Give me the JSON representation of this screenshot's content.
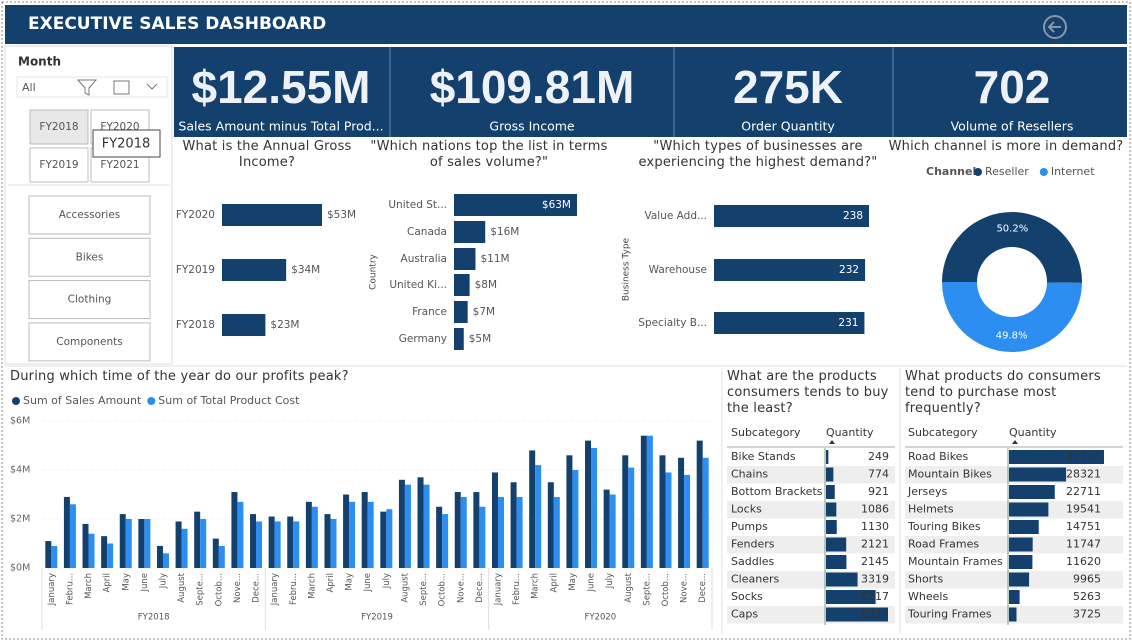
{
  "header": {
    "title": "EXECUTIVE SALES DASHBOARD"
  },
  "slicer": {
    "title": "Month",
    "selection": "All",
    "years": [
      "FY2018",
      "FY2020",
      "FY2019",
      "FY2021"
    ],
    "tooltip": "FY2018",
    "categories": [
      "Accessories",
      "Bikes",
      "Clothing",
      "Components"
    ]
  },
  "kpis": [
    {
      "value": "$12.55M",
      "label": "Sales Amount minus Total Prod..."
    },
    {
      "value": "$109.81M",
      "label": "Gross Income"
    },
    {
      "value": "275K",
      "label": "Order Quantity"
    },
    {
      "value": "702",
      "label": "Volume of Resellers"
    }
  ],
  "chart_data": [
    {
      "type": "hbar",
      "title": "What is the Annual Gross Income?",
      "categories": [
        "FY2020",
        "FY2019",
        "FY2018"
      ],
      "values": [
        53,
        34,
        23
      ],
      "value_labels": [
        "$53M",
        "$34M",
        "$23M"
      ],
      "color": "#13406d"
    },
    {
      "type": "hbar",
      "title": "\"Which nations top the list in terms of sales volume?\"",
      "y_label": "Country",
      "categories": [
        "United St...",
        "Canada",
        "Australia",
        "United Ki...",
        "France",
        "Germany"
      ],
      "values": [
        63,
        16,
        11,
        8,
        7,
        5
      ],
      "value_labels": [
        "$63M",
        "$16M",
        "$11M",
        "$8M",
        "$7M",
        "$5M"
      ],
      "color": "#13406d"
    },
    {
      "type": "hbar",
      "title": "\"Which types of businesses are experiencing the highest demand?\"",
      "y_label": "Business Type",
      "categories": [
        "Value Add...",
        "Warehouse",
        "Specialty B..."
      ],
      "values": [
        238,
        232,
        231
      ],
      "color": "#13406d"
    },
    {
      "type": "donut",
      "title": "Which channel is more in demand?",
      "legend_title": "Channel",
      "categories": [
        "Reseller",
        "Internet"
      ],
      "values": [
        50.2,
        49.8
      ],
      "value_labels": [
        "50.2%",
        "49.8%"
      ],
      "colors": [
        "#13406d",
        "#2b8ef0"
      ]
    },
    {
      "type": "column",
      "title": "During which time of the year do our profits peak?",
      "categories": [
        "January",
        "Febru...",
        "March",
        "April",
        "May",
        "June",
        "July",
        "August",
        "Septe...",
        "Octob...",
        "Nove...",
        "Dece...",
        "January",
        "Febru...",
        "March",
        "April",
        "May",
        "June",
        "July",
        "August",
        "Septe...",
        "Octob...",
        "Nove...",
        "Dece...",
        "January",
        "Febru...",
        "March",
        "April",
        "May",
        "June",
        "July",
        "August",
        "Septe...",
        "Octob...",
        "Nove...",
        "Dece..."
      ],
      "category_groups": [
        "FY2018",
        "FY2019",
        "FY2020"
      ],
      "series": [
        {
          "name": "Sum of Sales Amount",
          "color": "#13406d",
          "values": [
            1.1,
            2.9,
            1.8,
            1.3,
            2.2,
            2.0,
            0.9,
            1.9,
            2.3,
            1.2,
            3.1,
            2.2,
            2.1,
            2.1,
            2.7,
            2.2,
            3.0,
            3.1,
            2.3,
            3.6,
            3.7,
            2.5,
            3.1,
            3.1,
            3.9,
            3.5,
            4.8,
            3.5,
            4.6,
            5.2,
            3.2,
            4.6,
            5.4,
            4.6,
            4.5,
            5.2
          ]
        },
        {
          "name": "Sum of Total Product Cost",
          "color": "#2b8ef0",
          "values": [
            0.9,
            2.6,
            1.4,
            1.0,
            2.0,
            2.0,
            0.6,
            1.6,
            2.0,
            0.9,
            2.7,
            1.9,
            1.9,
            1.9,
            2.5,
            2.0,
            2.7,
            2.7,
            2.4,
            3.4,
            3.4,
            2.2,
            2.9,
            2.5,
            2.9,
            2.9,
            4.2,
            2.9,
            4.0,
            4.9,
            3.0,
            4.1,
            5.4,
            3.9,
            3.8,
            4.5
          ]
        }
      ],
      "ylim": [
        0,
        6
      ],
      "yticks": [
        {
          "value": 0,
          "label": "$0M"
        },
        {
          "value": 2,
          "label": "$2M"
        },
        {
          "value": 4,
          "label": "$4M"
        },
        {
          "value": 6,
          "label": "$6M"
        }
      ],
      "grid": true
    },
    {
      "type": "table-bar",
      "title": "What are the products consumers tends to buy the least?",
      "columns": [
        "Subcategory",
        "Quantity"
      ],
      "categories": [
        "Bike Stands",
        "Chains",
        "Bottom Brackets",
        "Locks",
        "Pumps",
        "Fenders",
        "Saddles",
        "Cleaners",
        "Socks",
        "Caps"
      ],
      "values": [
        249,
        774,
        921,
        1086,
        1130,
        2121,
        2145,
        3319,
        5217,
        6517
      ],
      "color": "#13406d"
    },
    {
      "type": "table-bar",
      "title": "What products do consumers tend to purchase most frequently?",
      "columns": [
        "Subcategory",
        "Quantity"
      ],
      "categories": [
        "Road Bikes",
        "Mountain Bikes",
        "Jerseys",
        "Helmets",
        "Touring Bikes",
        "Road Frames",
        "Mountain Frames",
        "Shorts",
        "Wheels",
        "Touring Frames"
      ],
      "values": [
        47146,
        28321,
        22711,
        19541,
        14751,
        11747,
        11620,
        9965,
        5263,
        3725
      ],
      "color": "#13406d"
    }
  ]
}
